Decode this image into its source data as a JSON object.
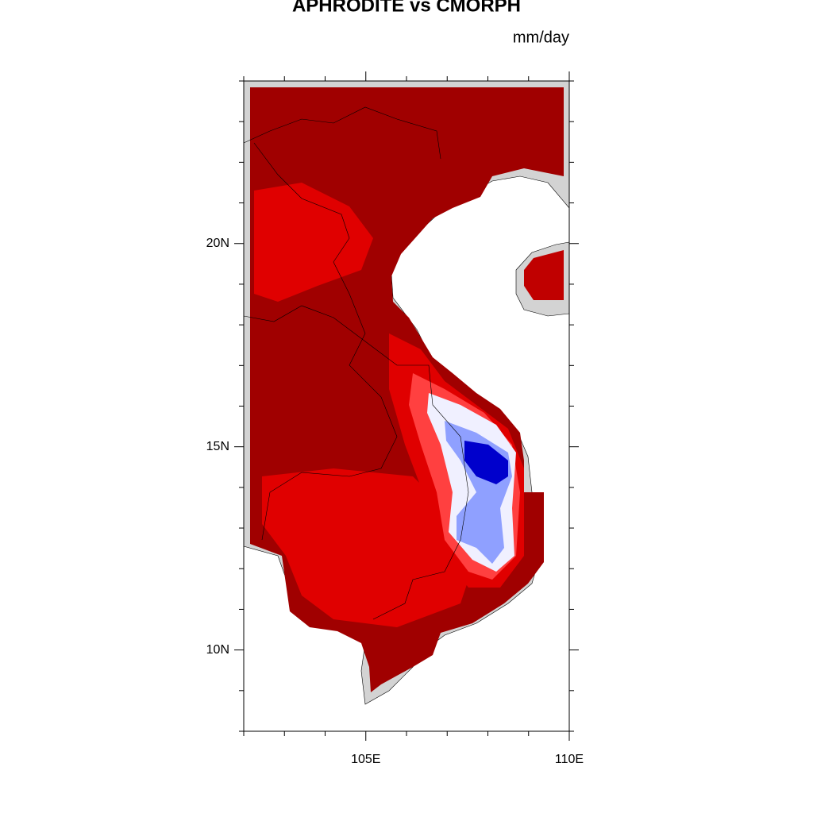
{
  "map": {
    "title": "APHRODITE vs CMORPH",
    "units": "mm/day",
    "xlim": [
      102,
      110
    ],
    "ylim": [
      8,
      24
    ],
    "xticks": [
      {
        "value": 105,
        "label": "105E"
      },
      {
        "value": 110,
        "label": "110E"
      }
    ],
    "yticks": [
      {
        "value": 10,
        "label": "10N"
      },
      {
        "value": 15,
        "label": "15N"
      },
      {
        "value": 20,
        "label": "20N"
      }
    ],
    "minor_xticks": [
      102,
      103,
      104,
      106,
      107,
      108,
      109
    ],
    "minor_yticks": [
      8,
      9,
      11,
      12,
      13,
      14,
      16,
      17,
      18,
      19,
      21,
      22,
      23,
      24
    ]
  }
}
